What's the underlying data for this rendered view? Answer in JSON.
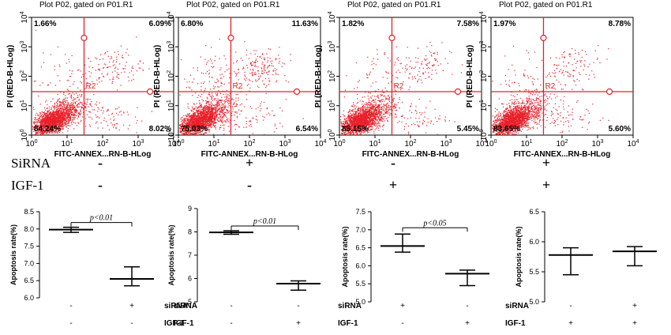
{
  "chart_data": [
    {
      "type": "scatter",
      "title": "Plot P02, gated on P01.R1",
      "xlabel": "FITC-ANNEX...RN-B-HLog",
      "ylabel": "PI (RED-B-HLog)",
      "xscale": "log",
      "yscale": "log",
      "xlim": [
        1,
        10000
      ],
      "ylim": [
        1,
        10000
      ],
      "xticks": [
        "10^0",
        "10^1",
        "10^2",
        "10^3",
        "10^4"
      ],
      "yticks": [
        "10^0",
        "10^1",
        "10^2",
        "10^3",
        "10^4"
      ],
      "gate_label": "R2",
      "gate": [
        30,
        30
      ],
      "quadrants": {
        "upper_left": "1.66%",
        "upper_right": "6.09%",
        "lower_left": "84.24%",
        "lower_right": "8.02%"
      },
      "condition": {
        "siRNA": "-",
        "IGF-1": "-"
      }
    },
    {
      "type": "scatter",
      "title": "Plot P02, gated on P01.R1",
      "xlabel": "FITC-ANNEX...RN-B-HLog",
      "ylabel": "PI (RED-B-HLog)",
      "xscale": "log",
      "yscale": "log",
      "xlim": [
        1,
        10000
      ],
      "ylim": [
        1,
        10000
      ],
      "xticks": [
        "10^0",
        "10^1",
        "10^2",
        "10^3",
        "10^4"
      ],
      "yticks": [
        "10^0",
        "10^1",
        "10^2",
        "10^3",
        "10^4"
      ],
      "gate_label": "R2",
      "gate": [
        30,
        30
      ],
      "quadrants": {
        "upper_left": "6.80%",
        "upper_right": "11.63%",
        "lower_left": "75.03%",
        "lower_right": "6.54%"
      },
      "condition": {
        "siRNA": "+",
        "IGF-1": "-"
      }
    },
    {
      "type": "scatter",
      "title": "Plot P02, gated on P01.R1",
      "xlabel": "FITC-ANNEX...RN-B-HLog",
      "ylabel": "PI (RED-B-HLog)",
      "xscale": "log",
      "yscale": "log",
      "xlim": [
        1,
        10000
      ],
      "ylim": [
        1,
        10000
      ],
      "xticks": [
        "10^0",
        "10^1",
        "10^2",
        "10^3",
        "10^4"
      ],
      "yticks": [
        "10^0",
        "10^1",
        "10^2",
        "10^3",
        "10^4"
      ],
      "gate_label": "R2",
      "gate": [
        30,
        30
      ],
      "quadrants": {
        "upper_left": "1.82%",
        "upper_right": "7.58%",
        "lower_left": "85.15%",
        "lower_right": "5.45%"
      },
      "condition": {
        "siRNA": "-",
        "IGF-1": "+"
      }
    },
    {
      "type": "scatter",
      "title": "Plot P02, gated on P01.R1",
      "xlabel": "FITC-ANNEX...RN-B-HLog",
      "ylabel": "PI (RED-B-HLog)",
      "xscale": "log",
      "yscale": "log",
      "xlim": [
        1,
        10000
      ],
      "ylim": [
        1,
        10000
      ],
      "xticks": [
        "10^0",
        "10^1",
        "10^2",
        "10^3",
        "10^4"
      ],
      "yticks": [
        "10^0",
        "10^1",
        "10^2",
        "10^3",
        "10^4"
      ],
      "gate_label": "R2",
      "gate": [
        30,
        30
      ],
      "quadrants": {
        "upper_left": "1.97%",
        "upper_right": "8.78%",
        "lower_left": "83.65%",
        "lower_right": "5.60%"
      },
      "condition": {
        "siRNA": "+",
        "IGF-1": "+"
      }
    },
    {
      "type": "dot",
      "ylabel": "Apoptosis rate(%)",
      "ylim": [
        6.0,
        8.5
      ],
      "yticks": [
        "6.0",
        "6.5",
        "7.0",
        "7.5",
        "8.0",
        "8.5"
      ],
      "row_labels": [
        "siRNA",
        "IGF-1"
      ],
      "groups": [
        {
          "signs": [
            "-",
            "-"
          ],
          "mean": 7.98,
          "low": 7.9,
          "high": 8.05
        },
        {
          "signs": [
            "+",
            "-"
          ],
          "mean": 6.55,
          "low": 6.35,
          "high": 6.9
        }
      ],
      "annotation": "p<0.01"
    },
    {
      "type": "dot",
      "ylabel": "Apoptosis rate(%)",
      "ylim": [
        5,
        9
      ],
      "yticks": [
        "5",
        "6",
        "7",
        "8",
        "9"
      ],
      "row_labels": [
        "siRNA",
        "IGF-1"
      ],
      "groups": [
        {
          "signs": [
            "-",
            "-"
          ],
          "mean": 7.98,
          "low": 7.9,
          "high": 8.05
        },
        {
          "signs": [
            "-",
            "+"
          ],
          "mean": 5.78,
          "low": 5.5,
          "high": 5.9
        }
      ],
      "annotation": "p<0.01"
    },
    {
      "type": "dot",
      "ylabel": "Apoptosis rate(%)",
      "ylim": [
        5.0,
        7.5
      ],
      "yticks": [
        "5.0",
        "5.5",
        "6.0",
        "6.5",
        "7.0",
        "7.5"
      ],
      "row_labels": [
        "siRNA",
        "IGF-1"
      ],
      "groups": [
        {
          "signs": [
            "+",
            "-"
          ],
          "mean": 6.55,
          "low": 6.38,
          "high": 6.88
        },
        {
          "signs": [
            "-",
            "+"
          ],
          "mean": 5.78,
          "low": 5.45,
          "high": 5.88
        }
      ],
      "annotation": "p<0.05"
    },
    {
      "type": "dot",
      "ylabel": "Apoptosis rate(%)",
      "ylim": [
        5.0,
        6.5
      ],
      "yticks": [
        "5.0",
        "5.5",
        "6.0",
        "6.5"
      ],
      "row_labels": [
        "siRNA",
        "IGF-1"
      ],
      "groups": [
        {
          "signs": [
            "-",
            "+"
          ],
          "mean": 5.78,
          "low": 5.45,
          "high": 5.9
        },
        {
          "signs": [
            "+",
            "+"
          ],
          "mean": 5.84,
          "low": 5.6,
          "high": 5.92
        }
      ],
      "annotation": ""
    }
  ],
  "conditions": {
    "rows": [
      "SiRNA",
      "IGF-1"
    ],
    "signs": [
      [
        "-",
        "+",
        "-",
        "+"
      ],
      [
        "-",
        "-",
        "+",
        "+"
      ]
    ]
  },
  "colors": {
    "dots": "#e8202a",
    "gate": "#e8202a",
    "ink": "#000000"
  }
}
